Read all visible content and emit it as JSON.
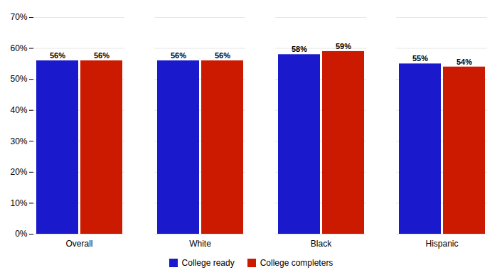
{
  "chart_data": {
    "type": "bar",
    "categories": [
      "Overall",
      "White",
      "Black",
      "Hispanic"
    ],
    "series": [
      {
        "name": "College ready",
        "color": "#1a1acc",
        "values": [
          0.56,
          0.56,
          0.58,
          0.55
        ],
        "value_labels": [
          "56%",
          "56%",
          "58%",
          "55%"
        ]
      },
      {
        "name": "College completers",
        "color": "#cc1a00",
        "values": [
          0.56,
          0.56,
          0.59,
          0.54
        ],
        "value_labels": [
          "56%",
          "56%",
          "59%",
          "54%"
        ]
      }
    ],
    "ylim": [
      0,
      0.7
    ],
    "yticks": [
      {
        "value": 0.0,
        "label": "0%"
      },
      {
        "value": 0.1,
        "label": "10%"
      },
      {
        "value": 0.2,
        "label": "20%"
      },
      {
        "value": 0.3,
        "label": "30%"
      },
      {
        "value": 0.4,
        "label": "40%"
      },
      {
        "value": 0.5,
        "label": "50%"
      },
      {
        "value": 0.6,
        "label": "60%"
      },
      {
        "value": 0.7,
        "label": "70%"
      }
    ],
    "grid": true,
    "data_labels": true,
    "legend": "bottom"
  }
}
